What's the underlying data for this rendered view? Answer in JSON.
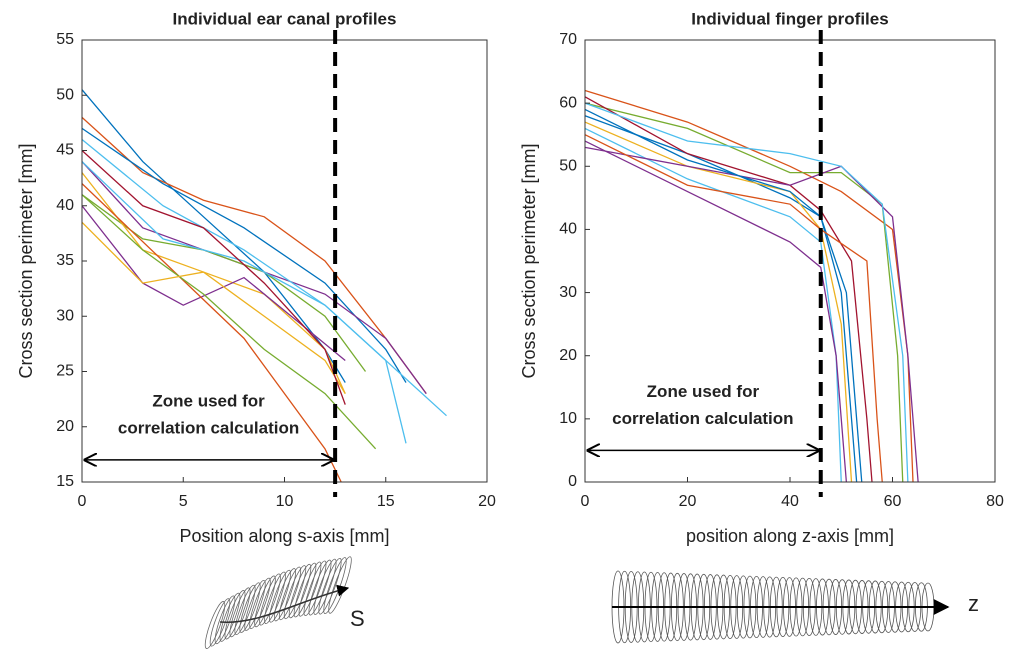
{
  "chart_data": [
    {
      "type": "line",
      "title": "Individual ear canal profiles",
      "x_label": "Position along s-axis [mm]",
      "y_label": "Cross section perimeter [mm]",
      "xlim": [
        0,
        20
      ],
      "ylim": [
        15,
        55
      ],
      "xticks": [
        0,
        5,
        10,
        15,
        20
      ],
      "yticks": [
        15,
        20,
        25,
        30,
        35,
        40,
        45,
        50,
        55
      ],
      "vline": 12.5,
      "zone_text": [
        "Zone used for",
        "correlation calculation"
      ],
      "zone_arrow": {
        "x": [
          0,
          12.5
        ],
        "y": 17
      },
      "axis_symbol": "S",
      "series": [
        {
          "color": "#0072BD",
          "x": [
            0,
            3,
            6,
            9,
            12,
            13
          ],
          "values": [
            50.5,
            44,
            39,
            34,
            27,
            24
          ]
        },
        {
          "color": "#D95319",
          "x": [
            0,
            3,
            6,
            9,
            12,
            15,
            17
          ],
          "values": [
            48,
            43,
            40.5,
            39,
            35,
            28,
            23
          ]
        },
        {
          "color": "#0072BD",
          "x": [
            0,
            4,
            8,
            12,
            15,
            16
          ],
          "values": [
            47,
            42,
            38,
            33,
            27,
            24
          ]
        },
        {
          "color": "#7E2F8E",
          "x": [
            0,
            3,
            6,
            9,
            12,
            15,
            17
          ],
          "values": [
            44,
            38,
            36,
            34,
            32,
            28,
            23
          ]
        },
        {
          "color": "#77AC30",
          "x": [
            0,
            3,
            6,
            9,
            12,
            14
          ],
          "values": [
            41,
            37,
            36,
            34,
            30,
            25
          ]
        },
        {
          "color": "#4DBEEE",
          "x": [
            0,
            4,
            8,
            12,
            15,
            16
          ],
          "values": [
            46,
            40,
            36,
            31,
            26,
            18.5
          ]
        },
        {
          "color": "#EDB120",
          "x": [
            0,
            3,
            6,
            9,
            12,
            13
          ],
          "values": [
            43,
            36,
            34,
            32,
            27,
            23
          ]
        },
        {
          "color": "#7E2F8E",
          "x": [
            0,
            3,
            5,
            8,
            11,
            13
          ],
          "values": [
            40,
            33,
            31,
            33.5,
            29,
            26
          ]
        },
        {
          "color": "#D95319",
          "x": [
            0,
            4,
            8,
            12,
            12.8
          ],
          "values": [
            42,
            35,
            28,
            18,
            15
          ]
        },
        {
          "color": "#77AC30",
          "x": [
            0,
            3,
            6,
            9,
            12,
            14.5
          ],
          "values": [
            41,
            36,
            32,
            27,
            23,
            18
          ]
        },
        {
          "color": "#EDB120",
          "x": [
            0,
            3,
            6,
            9,
            12,
            13
          ],
          "values": [
            38.5,
            33,
            34,
            30,
            26,
            23
          ]
        },
        {
          "color": "#4DBEEE",
          "x": [
            0,
            4,
            8,
            12,
            15,
            18
          ],
          "values": [
            44,
            37,
            35,
            31,
            26,
            21
          ]
        },
        {
          "color": "#A2142F",
          "x": [
            0,
            3,
            6,
            9,
            12,
            13
          ],
          "values": [
            45,
            40,
            38,
            33,
            27,
            22
          ]
        }
      ]
    },
    {
      "type": "line",
      "title": "Individual finger profiles",
      "x_label": "position along z-axis [mm]",
      "y_label": "Cross section perimeter [mm]",
      "xlim": [
        0,
        80
      ],
      "ylim": [
        0,
        70
      ],
      "xticks": [
        0,
        20,
        40,
        60,
        80
      ],
      "yticks": [
        0,
        10,
        20,
        30,
        40,
        50,
        60,
        70
      ],
      "vline": 46,
      "zone_text": [
        "Zone used for",
        "correlation calculation"
      ],
      "zone_arrow": {
        "x": [
          0,
          46
        ],
        "y": 5
      },
      "axis_symbol": "z",
      "series": [
        {
          "color": "#D95319",
          "x": [
            0,
            20,
            40,
            50,
            60,
            63,
            64
          ],
          "values": [
            62,
            57,
            50,
            46,
            40,
            20,
            0
          ]
        },
        {
          "color": "#77AC30",
          "x": [
            0,
            20,
            40,
            50,
            58,
            61,
            62
          ],
          "values": [
            60,
            56,
            49,
            49,
            44,
            20,
            0
          ]
        },
        {
          "color": "#0072BD",
          "x": [
            0,
            20,
            40,
            46,
            50,
            52,
            53
          ],
          "values": [
            58,
            52,
            45,
            42,
            30,
            10,
            0
          ]
        },
        {
          "color": "#4DBEEE",
          "x": [
            0,
            20,
            40,
            46,
            49,
            50
          ],
          "values": [
            56,
            48,
            42,
            38,
            20,
            0
          ]
        },
        {
          "color": "#7E2F8E",
          "x": [
            0,
            20,
            40,
            46,
            49,
            51
          ],
          "values": [
            54,
            46,
            38,
            34,
            20,
            0
          ]
        },
        {
          "color": "#A2142F",
          "x": [
            0,
            20,
            40,
            46,
            52,
            55,
            56
          ],
          "values": [
            61,
            52,
            47,
            43,
            35,
            10,
            0
          ]
        },
        {
          "color": "#EDB120",
          "x": [
            0,
            20,
            40,
            46,
            50,
            52
          ],
          "values": [
            57,
            50,
            46,
            40,
            25,
            0
          ]
        },
        {
          "color": "#7E2F8E",
          "x": [
            0,
            20,
            40,
            50,
            60,
            63,
            65
          ],
          "values": [
            53,
            50,
            47,
            50,
            42,
            20,
            0
          ]
        },
        {
          "color": "#0072BD",
          "x": [
            0,
            20,
            40,
            46,
            51,
            54
          ],
          "values": [
            59,
            51,
            46,
            42,
            30,
            0
          ]
        },
        {
          "color": "#D95319",
          "x": [
            0,
            20,
            40,
            46,
            55,
            57,
            58
          ],
          "values": [
            55,
            47,
            44,
            40,
            35,
            10,
            0
          ]
        },
        {
          "color": "#4DBEEE",
          "x": [
            0,
            20,
            40,
            50,
            58,
            62,
            63
          ],
          "values": [
            60,
            54,
            52,
            50,
            44,
            20,
            0
          ]
        }
      ]
    }
  ]
}
